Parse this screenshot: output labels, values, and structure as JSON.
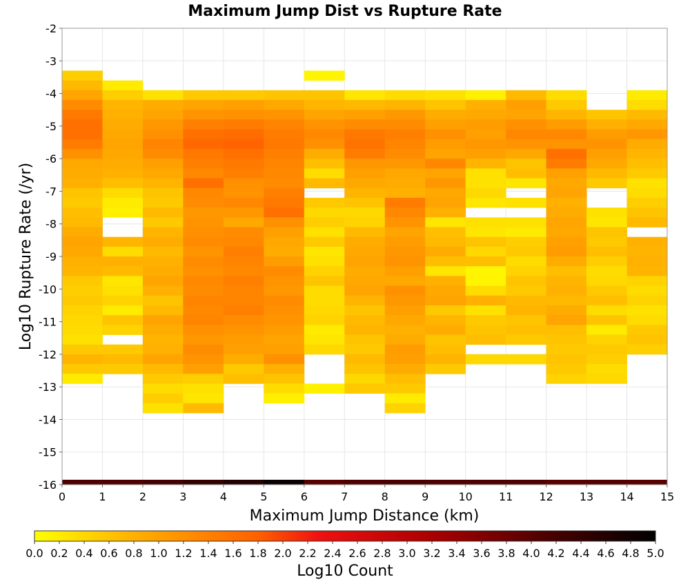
{
  "chart_data": {
    "type": "heatmap",
    "title": "Maximum Jump Dist vs Rupture Rate",
    "xlabel": "Maximum Jump Distance (km)",
    "ylabel": "Log10 Rupture Rate (/yr)",
    "xlim": [
      0,
      15
    ],
    "ylim": [
      -16,
      -2
    ],
    "x_ticks": [
      "0",
      "1",
      "2",
      "3",
      "4",
      "5",
      "6",
      "7",
      "8",
      "9",
      "10",
      "11",
      "12",
      "13",
      "14",
      "15"
    ],
    "y_ticks": [
      "-2",
      "-3",
      "-4",
      "-5",
      "-6",
      "-7",
      "-8",
      "-9",
      "-10",
      "-11",
      "-12",
      "-13",
      "-14",
      "-15",
      "-16"
    ],
    "grid": true,
    "bin_width_x": 1,
    "bin_height_y": 0.3,
    "colorbar": {
      "label": "Log10 Count",
      "range": [
        0,
        5
      ],
      "ticks": [
        "0.0",
        "0.2",
        "0.4",
        "0.6",
        "0.8",
        "1.0",
        "1.2",
        "1.4",
        "1.6",
        "1.8",
        "2.0",
        "2.2",
        "2.4",
        "2.6",
        "2.8",
        "3.0",
        "3.2",
        "3.4",
        "3.6",
        "3.8",
        "4.0",
        "4.2",
        "4.4",
        "4.6",
        "4.8",
        "5.0"
      ],
      "stops": [
        {
          "v": 0.0,
          "color": "#ffff00"
        },
        {
          "v": 0.8,
          "color": "#ffb000"
        },
        {
          "v": 1.8,
          "color": "#ff6000"
        },
        {
          "v": 2.3,
          "color": "#ee1010"
        },
        {
          "v": 3.2,
          "color": "#aa0000"
        },
        {
          "v": 4.2,
          "color": "#440000"
        },
        {
          "v": 5.0,
          "color": "#000000"
        }
      ]
    },
    "columns": [
      {
        "x": 0,
        "top": -3.3,
        "values": [
          0.5,
          0.7,
          0.95,
          1.25,
          1.5,
          1.6,
          1.6,
          1.45,
          1.2,
          0.9,
          0.85,
          0.8,
          0.6,
          0.55,
          0.65,
          0.7,
          0.85,
          0.95,
          0.9,
          0.8,
          0.75,
          0.55,
          0.5,
          0.55,
          0.45,
          0.4,
          0.35,
          0.3,
          0.55,
          0.75,
          0.55,
          0.2
        ]
      },
      {
        "x": 1,
        "top": -3.6,
        "values": [
          0.2,
          0.5,
          0.75,
          0.8,
          0.85,
          0.9,
          0.95,
          0.9,
          0.85,
          0.8,
          0.65,
          0.35,
          0.2,
          0.15,
          null,
          null,
          0.75,
          0.35,
          0.8,
          0.7,
          0.25,
          0.3,
          0.45,
          0.2,
          0.6,
          0.45,
          null,
          0.55,
          0.7,
          0.55
        ]
      },
      {
        "x": 2,
        "top": -3.9,
        "values": [
          0.3,
          0.85,
          0.95,
          1.1,
          1.2,
          1.35,
          1.25,
          1.0,
          0.9,
          0.75,
          0.6,
          0.55,
          0.7,
          0.55,
          0.75,
          0.85,
          0.7,
          0.8,
          0.85,
          0.95,
          0.8,
          0.6,
          0.7,
          0.95,
          0.85,
          0.75,
          0.8,
          0.95,
          0.7,
          0.55,
          0.35,
          0.5,
          0.3
        ]
      },
      {
        "x": 3,
        "top": -3.9,
        "values": [
          0.55,
          0.95,
          1.15,
          1.4,
          1.6,
          1.7,
          1.5,
          1.4,
          1.3,
          1.6,
          1.3,
          1.25,
          1.1,
          1.15,
          1.2,
          1.25,
          1.15,
          1.25,
          1.2,
          1.3,
          1.25,
          1.35,
          1.3,
          1.35,
          1.2,
          1.1,
          1.25,
          1.15,
          1.0,
          0.5,
          0.3,
          0.25,
          0.7
        ]
      },
      {
        "x": 4,
        "top": -3.9,
        "values": [
          0.55,
          1.0,
          1.2,
          1.45,
          1.65,
          1.75,
          1.6,
          1.5,
          1.4,
          1.2,
          1.15,
          1.3,
          1.1,
          0.9,
          1.25,
          1.3,
          1.4,
          1.35,
          1.3,
          1.4,
          1.35,
          1.35,
          1.4,
          1.25,
          1.15,
          1.05,
          1.0,
          0.85,
          0.55,
          0.65
        ]
      },
      {
        "x": 5,
        "top": -3.9,
        "values": [
          0.6,
          0.9,
          1.15,
          1.35,
          1.45,
          1.5,
          1.4,
          1.35,
          1.3,
          1.25,
          1.4,
          1.5,
          1.6,
          1.2,
          1.0,
          0.9,
          0.85,
          1.05,
          1.25,
          1.15,
          1.1,
          1.25,
          1.2,
          1.15,
          1.05,
          0.95,
          1.0,
          1.2,
          0.8,
          0.6,
          0.35,
          0.15
        ]
      },
      {
        "x": 6,
        "top": -3.3,
        "values": [
          0.1,
          null,
          0.6,
          0.75,
          0.95,
          1.15,
          1.3,
          1.2,
          0.85,
          0.65,
          0.35,
          0.7,
          null,
          0.55,
          0.4,
          0.5,
          0.3,
          0.55,
          0.25,
          0.3,
          0.45,
          0.6,
          0.35,
          0.35,
          0.4,
          0.45,
          0.2,
          0.25,
          0.4,
          null,
          null,
          null,
          0.15
        ]
      },
      {
        "x": 7,
        "top": -3.9,
        "values": [
          0.25,
          0.7,
          1.0,
          1.25,
          1.5,
          1.55,
          1.45,
          1.1,
          1.0,
          0.9,
          0.75,
          0.6,
          0.4,
          0.45,
          0.7,
          0.85,
          0.9,
          0.95,
          0.85,
          0.9,
          0.95,
          0.75,
          0.6,
          0.7,
          0.75,
          0.6,
          0.55,
          0.7,
          0.6,
          0.4,
          0.55
        ]
      },
      {
        "x": 8,
        "top": -3.9,
        "values": [
          0.35,
          0.75,
          1.1,
          1.25,
          1.4,
          1.35,
          1.25,
          1.1,
          0.9,
          0.85,
          0.8,
          1.45,
          1.3,
          1.15,
          0.95,
          1.05,
          1.1,
          1.15,
          1.0,
          0.9,
          1.2,
          1.1,
          1.0,
          0.9,
          0.8,
          0.85,
          1.05,
          1.0,
          0.85,
          0.65,
          0.55,
          0.2,
          0.45
        ]
      },
      {
        "x": 9,
        "top": -3.9,
        "values": [
          0.3,
          0.6,
          0.85,
          1.0,
          1.2,
          1.05,
          0.95,
          1.3,
          0.95,
          1.1,
          0.9,
          0.95,
          0.8,
          0.25,
          0.65,
          0.7,
          0.85,
          0.65,
          0.25,
          0.8,
          0.9,
          0.95,
          0.55,
          0.75,
          0.85,
          0.6,
          0.65,
          0.75,
          0.55
        ]
      },
      {
        "x": 10,
        "top": -3.9,
        "values": [
          0.15,
          0.8,
          0.9,
          1.05,
          1.0,
          1.1,
          1.0,
          0.75,
          0.3,
          0.3,
          0.4,
          0.25,
          null,
          0.3,
          0.25,
          0.6,
          0.4,
          0.65,
          0.1,
          0.1,
          0.35,
          0.8,
          0.3,
          0.55,
          0.6,
          0.65,
          null,
          0.4
        ]
      },
      {
        "x": 11,
        "top": -3.9,
        "values": [
          0.7,
          1.0,
          0.95,
          1.2,
          1.3,
          1.15,
          0.9,
          0.6,
          0.65,
          0.25,
          null,
          0.3,
          null,
          0.3,
          0.2,
          0.5,
          0.55,
          0.35,
          0.45,
          0.6,
          0.55,
          0.7,
          0.75,
          0.6,
          0.65,
          0.55,
          null,
          0.4
        ]
      },
      {
        "x": 12,
        "top": -3.9,
        "values": [
          0.35,
          0.55,
          0.75,
          1.05,
          1.3,
          1.15,
          1.6,
          1.45,
          1.0,
          0.9,
          0.95,
          0.8,
          0.85,
          0.95,
          0.9,
          1.0,
          1.05,
          0.85,
          0.65,
          0.75,
          0.8,
          0.7,
          0.85,
          0.95,
          0.65,
          0.6,
          0.55,
          0.6,
          0.55,
          0.45
        ]
      },
      {
        "x": 13,
        "top": -4.5,
        "values": [
          0.6,
          0.8,
          1.05,
          1.15,
          1.0,
          0.9,
          0.7,
          0.55,
          null,
          null,
          0.3,
          0.25,
          0.6,
          0.55,
          0.65,
          0.5,
          0.35,
          0.4,
          0.55,
          0.65,
          0.35,
          0.6,
          0.2,
          0.45,
          0.55,
          0.5,
          0.35,
          0.4
        ]
      },
      {
        "x": 14,
        "top": -3.9,
        "values": [
          0.2,
          0.35,
          0.7,
          0.9,
          1.1,
          0.85,
          0.75,
          0.65,
          0.55,
          0.3,
          0.35,
          0.5,
          0.6,
          0.7,
          null,
          0.8,
          0.75,
          0.8,
          0.75,
          0.45,
          0.35,
          0.45,
          0.3,
          0.35,
          0.55,
          0.6,
          0.5
        ]
      }
    ],
    "bottom_row": {
      "y": -16,
      "values": [
        4.1,
        4.1,
        4.2,
        4.4,
        4.6,
        4.9,
        4.0,
        4.1,
        4.15,
        4.1,
        4.1,
        4.1,
        4.0,
        4.05,
        4.0
      ]
    }
  }
}
